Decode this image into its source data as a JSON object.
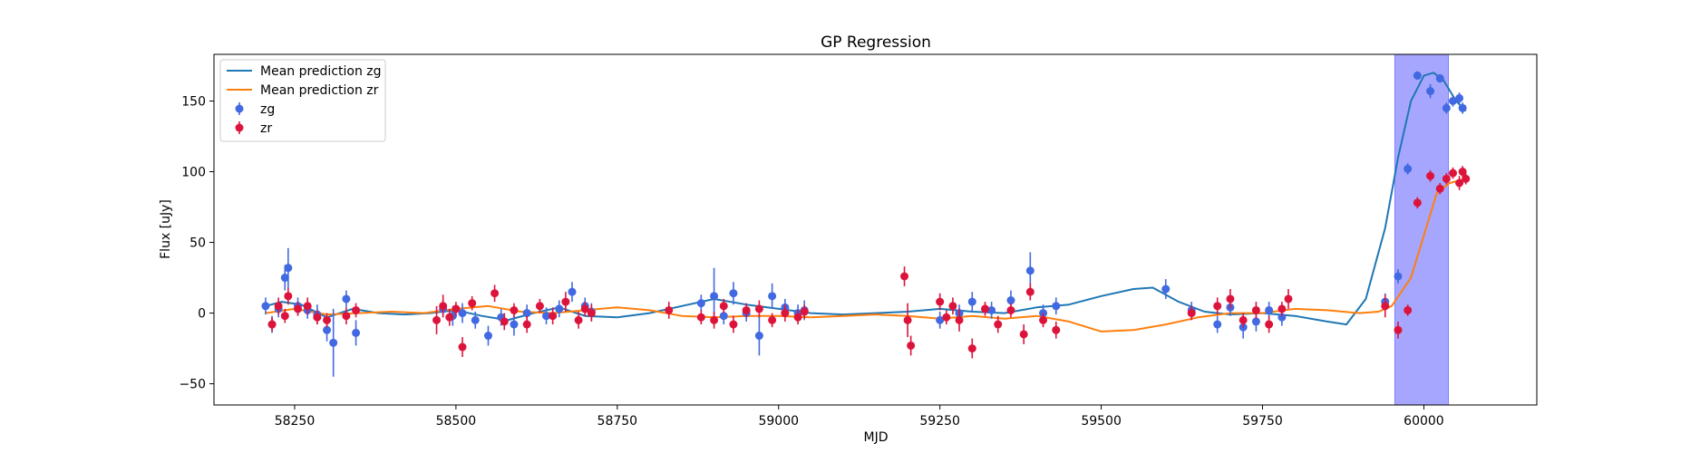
{
  "chart_data": {
    "type": "scatter",
    "title": "GP Regression",
    "xlabel": "MJD",
    "ylabel": "Flux [uJy]",
    "xlim": [
      58125,
      60175
    ],
    "ylim": [
      -65,
      183
    ],
    "xticks": [
      58250,
      58500,
      58750,
      59000,
      59250,
      59500,
      59750,
      60000
    ],
    "yticks": [
      -50,
      0,
      50,
      100,
      150
    ],
    "shaded_region": {
      "x_start": 59955,
      "x_end": 60038,
      "color": "#a6a6ff"
    },
    "legend": {
      "position": "top-left"
    },
    "series": [
      {
        "name": "Mean prediction zg",
        "kind": "line",
        "color": "#1f77b4",
        "x": [
          58205,
          58230,
          58260,
          58300,
          58340,
          58380,
          58420,
          58460,
          58500,
          58540,
          58580,
          58620,
          58660,
          58700,
          58750,
          58800,
          58850,
          58900,
          58950,
          59000,
          59050,
          59100,
          59150,
          59200,
          59250,
          59300,
          59350,
          59400,
          59450,
          59500,
          59550,
          59580,
          59620,
          59660,
          59700,
          59750,
          59800,
          59850,
          59880,
          59910,
          59940,
          59960,
          59980,
          60000,
          60015,
          60030,
          60050,
          60065
        ],
        "y": [
          5,
          8,
          6,
          -3,
          3,
          0,
          -1,
          0,
          2,
          -2,
          -5,
          0,
          4,
          -2,
          -3,
          0,
          5,
          10,
          6,
          3,
          0,
          -1,
          0,
          1,
          3,
          1,
          0,
          4,
          6,
          12,
          17,
          18,
          8,
          1,
          -1,
          0,
          -2,
          -6,
          -8,
          10,
          60,
          110,
          150,
          168,
          170,
          165,
          150,
          143
        ]
      },
      {
        "name": "Mean prediction zr",
        "kind": "line",
        "color": "#ff7f0e",
        "x": [
          58205,
          58250,
          58300,
          58350,
          58400,
          58450,
          58500,
          58550,
          58600,
          58650,
          58700,
          58750,
          58800,
          58850,
          58900,
          58950,
          59000,
          59050,
          59100,
          59150,
          59200,
          59250,
          59300,
          59350,
          59400,
          59450,
          59500,
          59550,
          59600,
          59650,
          59700,
          59750,
          59800,
          59850,
          59900,
          59930,
          59950,
          59980,
          60000,
          60020,
          60040,
          60065
        ],
        "y": [
          0,
          3,
          -1,
          0,
          1,
          0,
          3,
          5,
          1,
          0,
          2,
          4,
          2,
          -2,
          -3,
          -2,
          -2,
          -3,
          -2,
          -1,
          -2,
          -4,
          -2,
          -4,
          -2,
          -6,
          -13,
          -12,
          -8,
          -3,
          0,
          0,
          3,
          2,
          0,
          1,
          5,
          25,
          55,
          85,
          92,
          95
        ]
      },
      {
        "name": "zg",
        "kind": "errorbar",
        "color": "#4169e1",
        "x": [
          58205,
          58215,
          58225,
          58235,
          58240,
          58255,
          58270,
          58285,
          58300,
          58310,
          58330,
          58345,
          58480,
          58495,
          58510,
          58530,
          58550,
          58570,
          58590,
          58610,
          58640,
          58660,
          58680,
          58700,
          58710,
          58880,
          58900,
          58915,
          58930,
          58950,
          58970,
          58990,
          59010,
          59030,
          59040,
          59250,
          59280,
          59300,
          59330,
          59360,
          59390,
          59410,
          59430,
          59600,
          59640,
          59680,
          59700,
          59720,
          59740,
          59760,
          59780,
          59940,
          59960,
          59975,
          59990,
          60010,
          60025,
          60035,
          60045,
          60055,
          60060
        ],
        "y": [
          5,
          -8,
          3,
          25,
          32,
          5,
          2,
          -1,
          -12,
          -21,
          10,
          -14,
          3,
          -2,
          0,
          -5,
          -16,
          -3,
          -8,
          0,
          -2,
          3,
          15,
          5,
          1,
          7,
          12,
          -2,
          14,
          0,
          -16,
          12,
          4,
          0,
          2,
          -5,
          0,
          8,
          2,
          9,
          30,
          0,
          5,
          17,
          2,
          -8,
          4,
          -10,
          -6,
          2,
          -3,
          8,
          26,
          102,
          168,
          157,
          166,
          145,
          150,
          152,
          145
        ],
        "yerr": [
          6,
          6,
          6,
          9,
          14,
          6,
          6,
          7,
          8,
          24,
          6,
          9,
          6,
          7,
          7,
          6,
          7,
          6,
          8,
          6,
          6,
          6,
          7,
          6,
          6,
          6,
          20,
          6,
          8,
          6,
          14,
          9,
          6,
          6,
          7,
          6,
          6,
          7,
          6,
          7,
          13,
          6,
          6,
          7,
          6,
          6,
          6,
          8,
          7,
          6,
          6,
          6,
          5,
          4,
          3,
          5,
          3,
          4,
          4,
          4,
          4
        ]
      },
      {
        "name": "zr",
        "kind": "errorbar",
        "color": "#dc143c",
        "x": [
          58215,
          58225,
          58235,
          58240,
          58255,
          58270,
          58285,
          58300,
          58330,
          58345,
          58470,
          58480,
          58490,
          58500,
          58510,
          58525,
          58560,
          58575,
          58590,
          58610,
          58630,
          58650,
          58670,
          58690,
          58700,
          58710,
          58830,
          58880,
          58900,
          58915,
          58930,
          58950,
          58970,
          58990,
          59010,
          59030,
          59040,
          59195,
          59200,
          59205,
          59250,
          59260,
          59270,
          59280,
          59300,
          59320,
          59340,
          59360,
          59380,
          59390,
          59410,
          59430,
          59640,
          59680,
          59700,
          59720,
          59740,
          59760,
          59780,
          59790,
          59940,
          59960,
          59975,
          59990,
          60010,
          60025,
          60035,
          60045,
          60055,
          60060,
          60065
        ],
        "y": [
          -8,
          5,
          -2,
          12,
          3,
          5,
          -3,
          -5,
          -2,
          2,
          -5,
          5,
          -3,
          3,
          -24,
          7,
          14,
          -6,
          2,
          -8,
          5,
          -2,
          8,
          -5,
          3,
          0,
          2,
          -3,
          -5,
          5,
          -8,
          2,
          3,
          -5,
          0,
          -3,
          1,
          26,
          -5,
          -23,
          8,
          -3,
          5,
          -5,
          -25,
          3,
          -8,
          2,
          -15,
          15,
          -5,
          -12,
          0,
          5,
          10,
          -5,
          2,
          -8,
          3,
          10,
          5,
          -12,
          2,
          78,
          97,
          88,
          95,
          99,
          92,
          100,
          95
        ],
        "yerr": [
          5,
          6,
          5,
          6,
          5,
          6,
          5,
          5,
          6,
          5,
          10,
          8,
          6,
          5,
          7,
          5,
          6,
          6,
          5,
          6,
          5,
          6,
          7,
          6,
          5,
          6,
          6,
          5,
          6,
          5,
          6,
          5,
          6,
          5,
          6,
          5,
          5,
          7,
          12,
          7,
          6,
          5,
          6,
          8,
          7,
          5,
          6,
          5,
          7,
          6,
          5,
          6,
          5,
          6,
          7,
          5,
          6,
          6,
          5,
          7,
          8,
          6,
          4,
          4,
          4,
          4,
          4,
          4,
          5,
          4,
          4
        ]
      }
    ]
  }
}
